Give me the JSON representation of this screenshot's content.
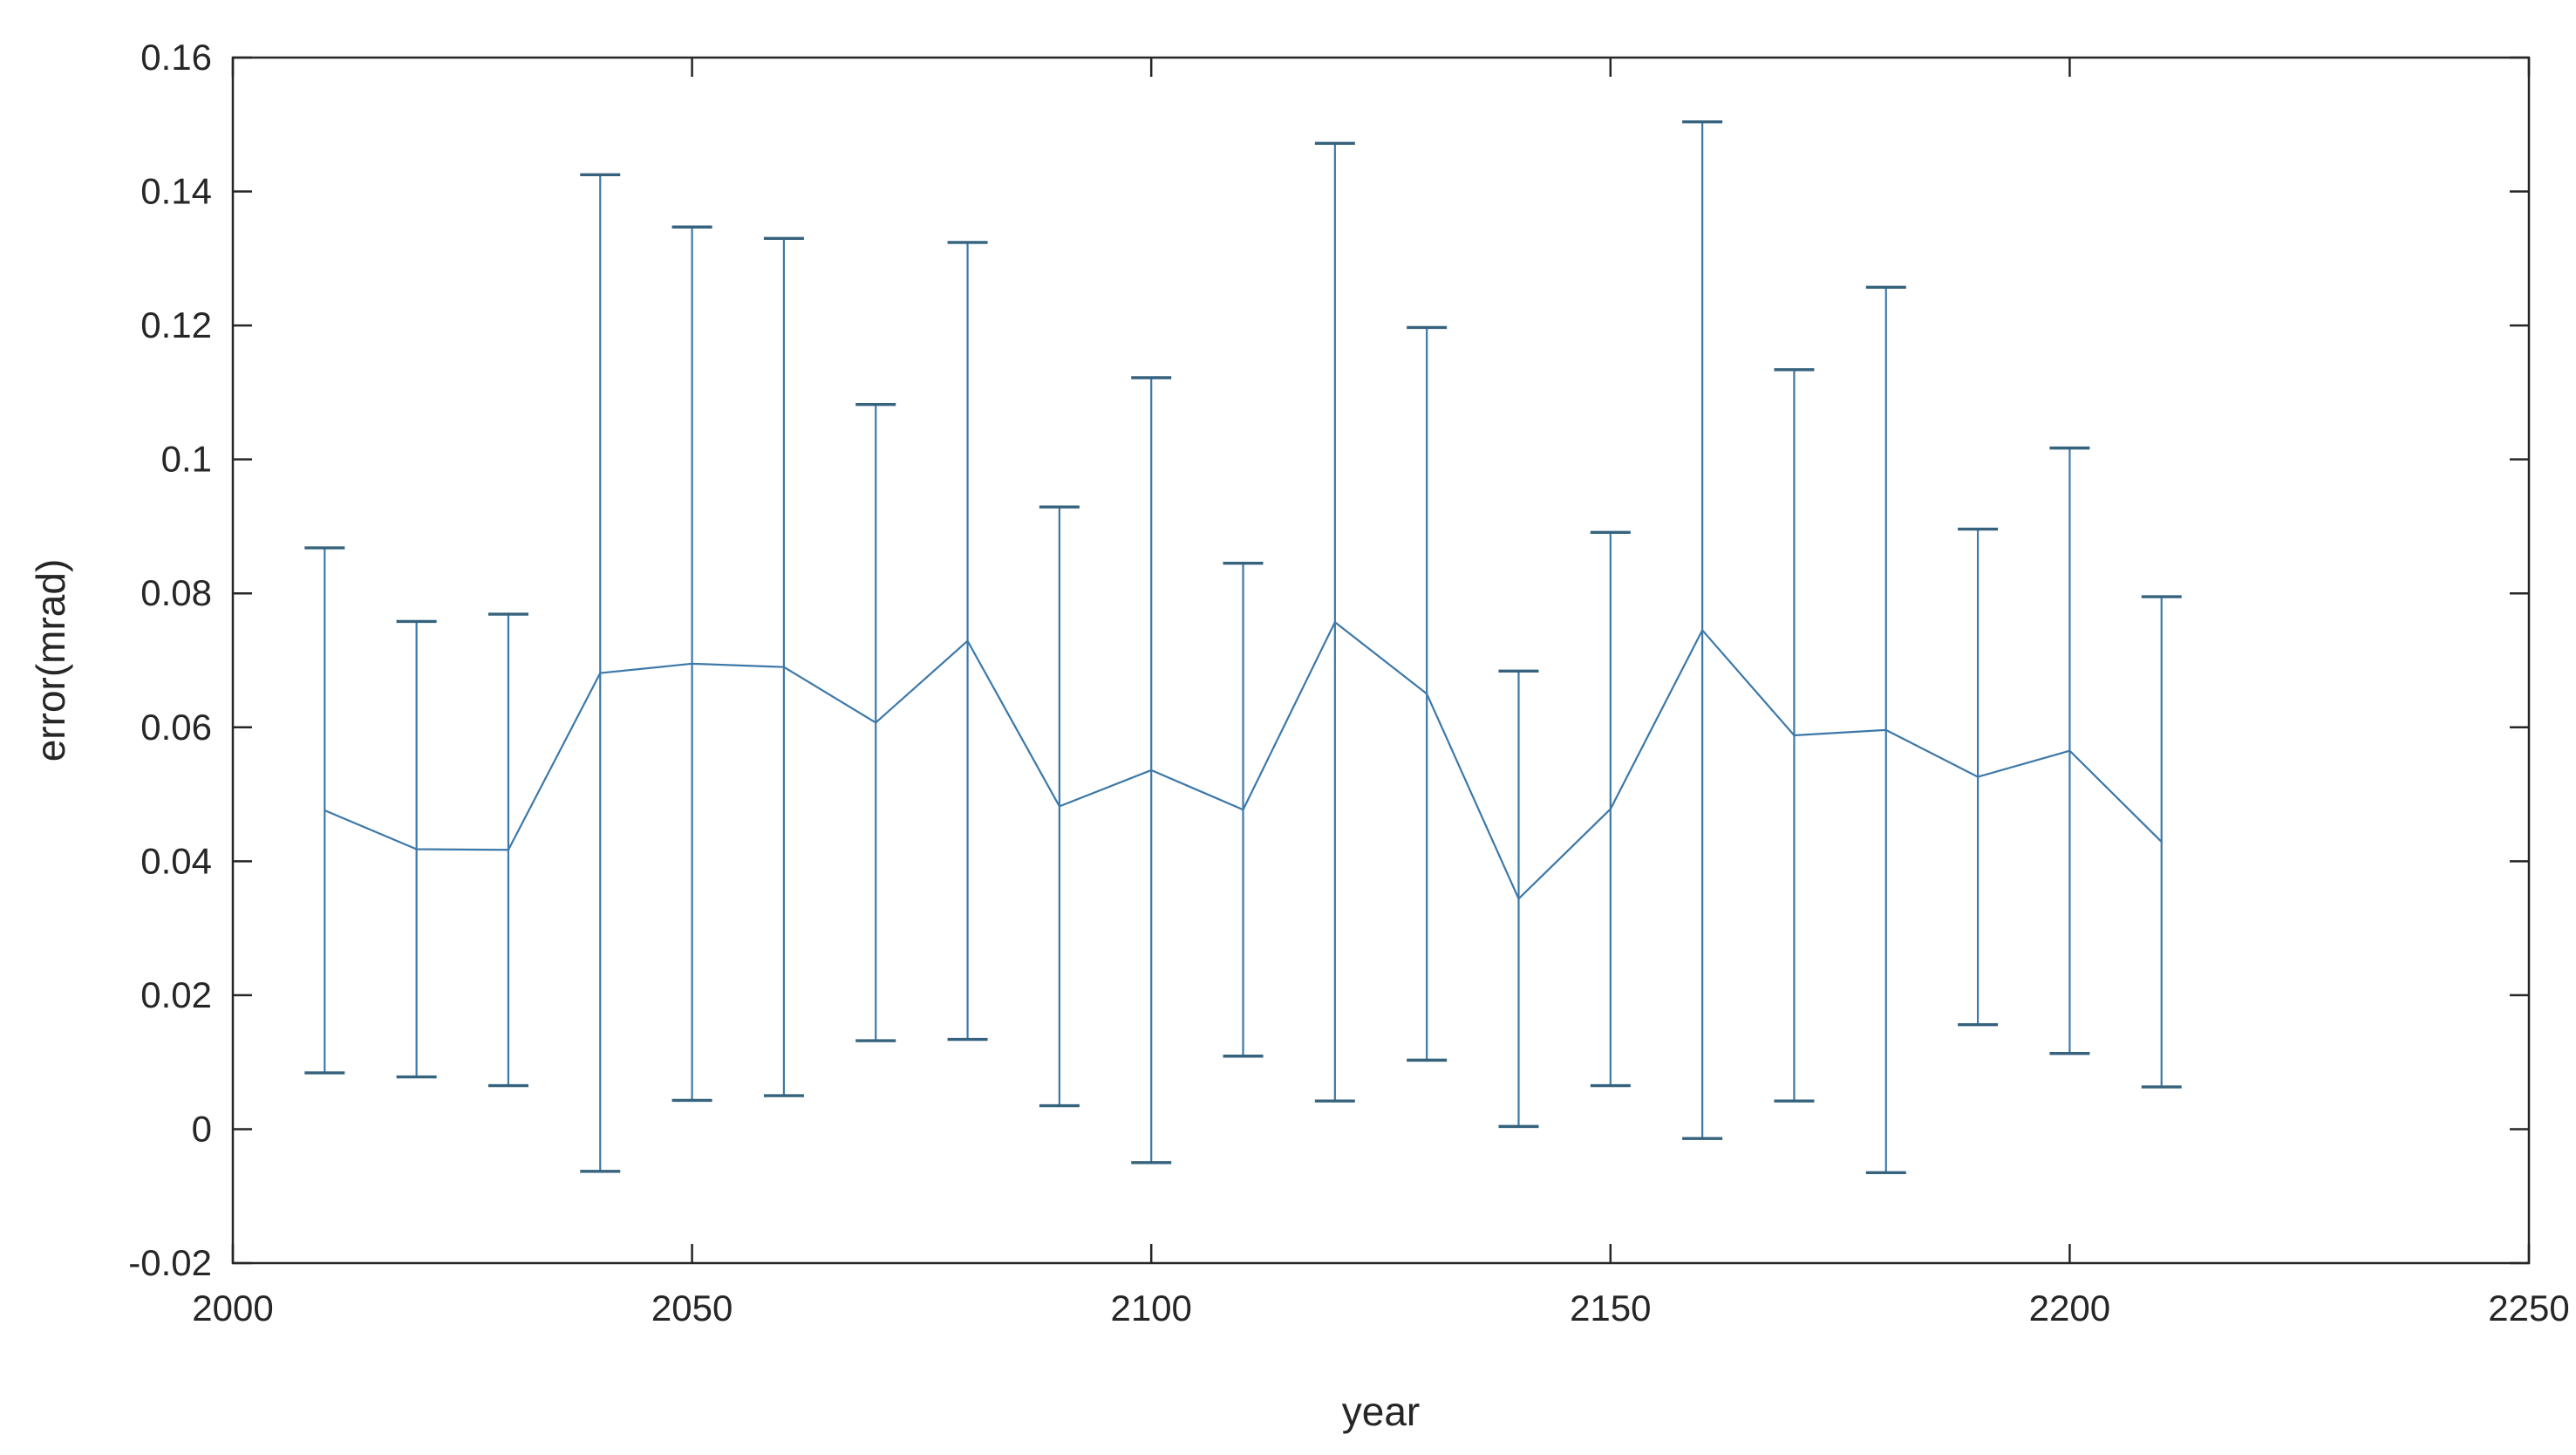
{
  "window": {
    "background": "#ffffff"
  },
  "chart_data": {
    "type": "line",
    "subtype": "errorbar",
    "title": "",
    "xlabel": "year",
    "ylabel": "error(mrad)",
    "xlim": [
      2000,
      2250
    ],
    "ylim": [
      -0.02,
      0.16
    ],
    "xticks": [
      2000,
      2050,
      2100,
      2150,
      2200,
      2250
    ],
    "xtick_labels": [
      "2000",
      "2050",
      "2100",
      "2150",
      "2200",
      "2250"
    ],
    "yticks": [
      -0.02,
      0,
      0.02,
      0.04,
      0.06,
      0.08,
      0.1,
      0.12,
      0.14,
      0.16
    ],
    "ytick_labels": [
      "-0.02",
      "0",
      "0.02",
      "0.04",
      "0.06",
      "0.08",
      "0.1",
      "0.12",
      "0.14",
      "0.16"
    ],
    "grid": false,
    "legend": null,
    "box": true,
    "x": [
      2010,
      2020,
      2030,
      2040,
      2050,
      2060,
      2070,
      2080,
      2090,
      2100,
      2110,
      2120,
      2130,
      2140,
      2150,
      2160,
      2170,
      2180,
      2190,
      2200,
      2210
    ],
    "series": [
      {
        "name": "error",
        "values": [
          0.0476,
          0.0418,
          0.0417,
          0.0681,
          0.0695,
          0.069,
          0.0607,
          0.0729,
          0.0482,
          0.0536,
          0.0477,
          0.0757,
          0.065,
          0.0344,
          0.0478,
          0.0745,
          0.0588,
          0.0596,
          0.0526,
          0.0565,
          0.0429
        ],
        "errors": [
          0.0392,
          0.034,
          0.0352,
          0.0744,
          0.0652,
          0.064,
          0.0475,
          0.0595,
          0.0447,
          0.0586,
          0.0368,
          0.0715,
          0.0547,
          0.034,
          0.0413,
          0.0759,
          0.0546,
          0.0661,
          0.037,
          0.0452,
          0.0366
        ]
      }
    ],
    "line_color": "#3c78a8",
    "cap_color": "#35627c",
    "axis_color": "#262626",
    "tick_label_color": "#262626"
  }
}
